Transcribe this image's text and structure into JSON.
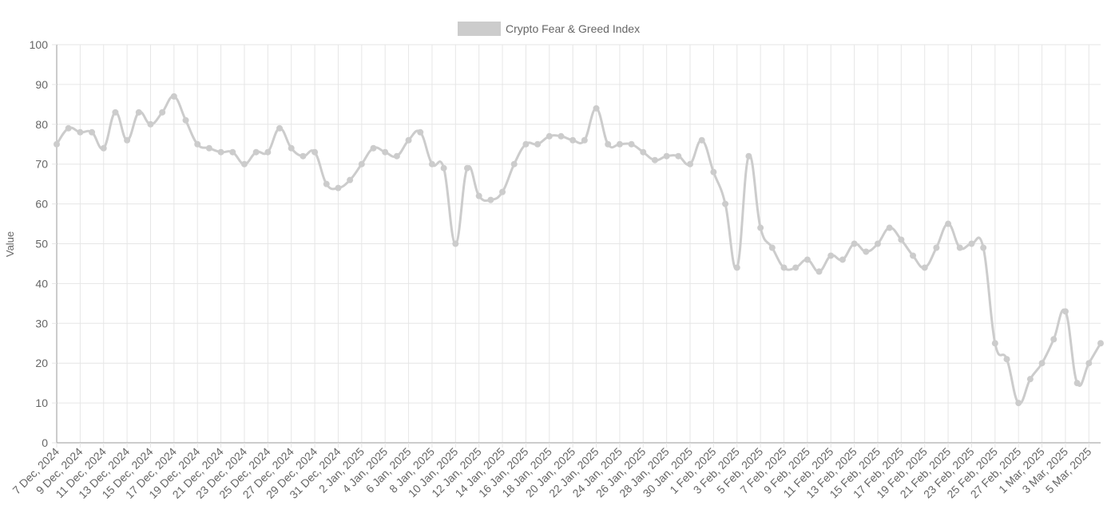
{
  "chart_data": {
    "type": "line",
    "title": "",
    "xlabel": "",
    "ylabel": "Value",
    "ylim": [
      0,
      100
    ],
    "y_ticks": [
      0,
      10,
      20,
      30,
      40,
      50,
      60,
      70,
      80,
      90,
      100
    ],
    "grid": true,
    "legend_position": "top-center",
    "series_color": "#cccccc",
    "grid_color": "#e6e6e6",
    "axis_color": "#999999",
    "categories": [
      "7 Dec, 2024",
      "8 Dec, 2024",
      "9 Dec, 2024",
      "10 Dec, 2024",
      "11 Dec, 2024",
      "12 Dec, 2024",
      "13 Dec, 2024",
      "14 Dec, 2024",
      "15 Dec, 2024",
      "16 Dec, 2024",
      "17 Dec, 2024",
      "18 Dec, 2024",
      "19 Dec, 2024",
      "20 Dec, 2024",
      "21 Dec, 2024",
      "22 Dec, 2024",
      "23 Dec, 2024",
      "24 Dec, 2024",
      "25 Dec, 2024",
      "26 Dec, 2024",
      "27 Dec, 2024",
      "28 Dec, 2024",
      "29 Dec, 2024",
      "30 Dec, 2024",
      "31 Dec, 2024",
      "1 Jan, 2025",
      "2 Jan, 2025",
      "3 Jan, 2025",
      "4 Jan, 2025",
      "5 Jan, 2025",
      "6 Jan, 2025",
      "7 Jan, 2025",
      "8 Jan, 2025",
      "9 Jan, 2025",
      "10 Jan, 2025",
      "11 Jan, 2025",
      "12 Jan, 2025",
      "13 Jan, 2025",
      "14 Jan, 2025",
      "15 Jan, 2025",
      "16 Jan, 2025",
      "17 Jan, 2025",
      "18 Jan, 2025",
      "19 Jan, 2025",
      "20 Jan, 2025",
      "21 Jan, 2025",
      "22 Jan, 2025",
      "23 Jan, 2025",
      "24 Jan, 2025",
      "25 Jan, 2025",
      "26 Jan, 2025",
      "27 Jan, 2025",
      "28 Jan, 2025",
      "29 Jan, 2025",
      "30 Jan, 2025",
      "31 Jan, 2025",
      "1 Feb, 2025",
      "2 Feb, 2025",
      "3 Feb, 2025",
      "4 Feb, 2025",
      "5 Feb, 2025",
      "6 Feb, 2025",
      "7 Feb, 2025",
      "8 Feb, 2025",
      "9 Feb, 2025",
      "10 Feb, 2025",
      "11 Feb, 2025",
      "12 Feb, 2025",
      "13 Feb, 2025",
      "14 Feb, 2025",
      "15 Feb, 2025",
      "16 Feb, 2025",
      "17 Feb, 2025",
      "18 Feb, 2025",
      "19 Feb, 2025",
      "20 Feb, 2025",
      "21 Feb, 2025",
      "22 Feb, 2025",
      "23 Feb, 2025",
      "24 Feb, 2025",
      "25 Feb, 2025",
      "26 Feb, 2025",
      "27 Feb, 2025",
      "28 Feb, 2025",
      "1 Mar, 2025",
      "2 Mar, 2025",
      "3 Mar, 2025",
      "4 Mar, 2025",
      "5 Mar, 2025",
      "6 Mar, 2025"
    ],
    "x_tick_labels": [
      "7 Dec, 2024",
      "9 Dec, 2024",
      "11 Dec, 2024",
      "13 Dec, 2024",
      "15 Dec, 2024",
      "17 Dec, 2024",
      "19 Dec, 2024",
      "21 Dec, 2024",
      "23 Dec, 2024",
      "25 Dec, 2024",
      "27 Dec, 2024",
      "29 Dec, 2024",
      "31 Dec, 2024",
      "2 Jan, 2025",
      "4 Jan, 2025",
      "6 Jan, 2025",
      "8 Jan, 2025",
      "10 Jan, 2025",
      "12 Jan, 2025",
      "14 Jan, 2025",
      "16 Jan, 2025",
      "18 Jan, 2025",
      "20 Jan, 2025",
      "22 Jan, 2025",
      "24 Jan, 2025",
      "26 Jan, 2025",
      "28 Jan, 2025",
      "30 Jan, 2025",
      "1 Feb, 2025",
      "3 Feb, 2025",
      "5 Feb, 2025",
      "7 Feb, 2025",
      "9 Feb, 2025",
      "11 Feb, 2025",
      "13 Feb, 2025",
      "15 Feb, 2025",
      "17 Feb, 2025",
      "19 Feb, 2025",
      "21 Feb, 2025",
      "23 Feb, 2025",
      "25 Feb, 2025",
      "27 Feb, 2025",
      "1 Mar, 2025",
      "3 Mar, 2025",
      "5 Mar, 2025"
    ],
    "series": [
      {
        "name": "Crypto Fear & Greed Index",
        "values": [
          75,
          79,
          78,
          78,
          74,
          83,
          76,
          83,
          80,
          83,
          87,
          81,
          75,
          74,
          73,
          73,
          70,
          73,
          73,
          79,
          74,
          72,
          73,
          65,
          64,
          66,
          70,
          74,
          73,
          72,
          76,
          78,
          70,
          69,
          50,
          69,
          62,
          61,
          63,
          70,
          75,
          75,
          77,
          77,
          76,
          76,
          84,
          75,
          75,
          75,
          73,
          71,
          72,
          72,
          70,
          76,
          68,
          60,
          44,
          72,
          54,
          49,
          44,
          44,
          46,
          43,
          47,
          46,
          50,
          48,
          50,
          54,
          51,
          47,
          44,
          49,
          55,
          49,
          50,
          49,
          25,
          21,
          10,
          16,
          20,
          26,
          33,
          15,
          20,
          25
        ]
      }
    ]
  }
}
